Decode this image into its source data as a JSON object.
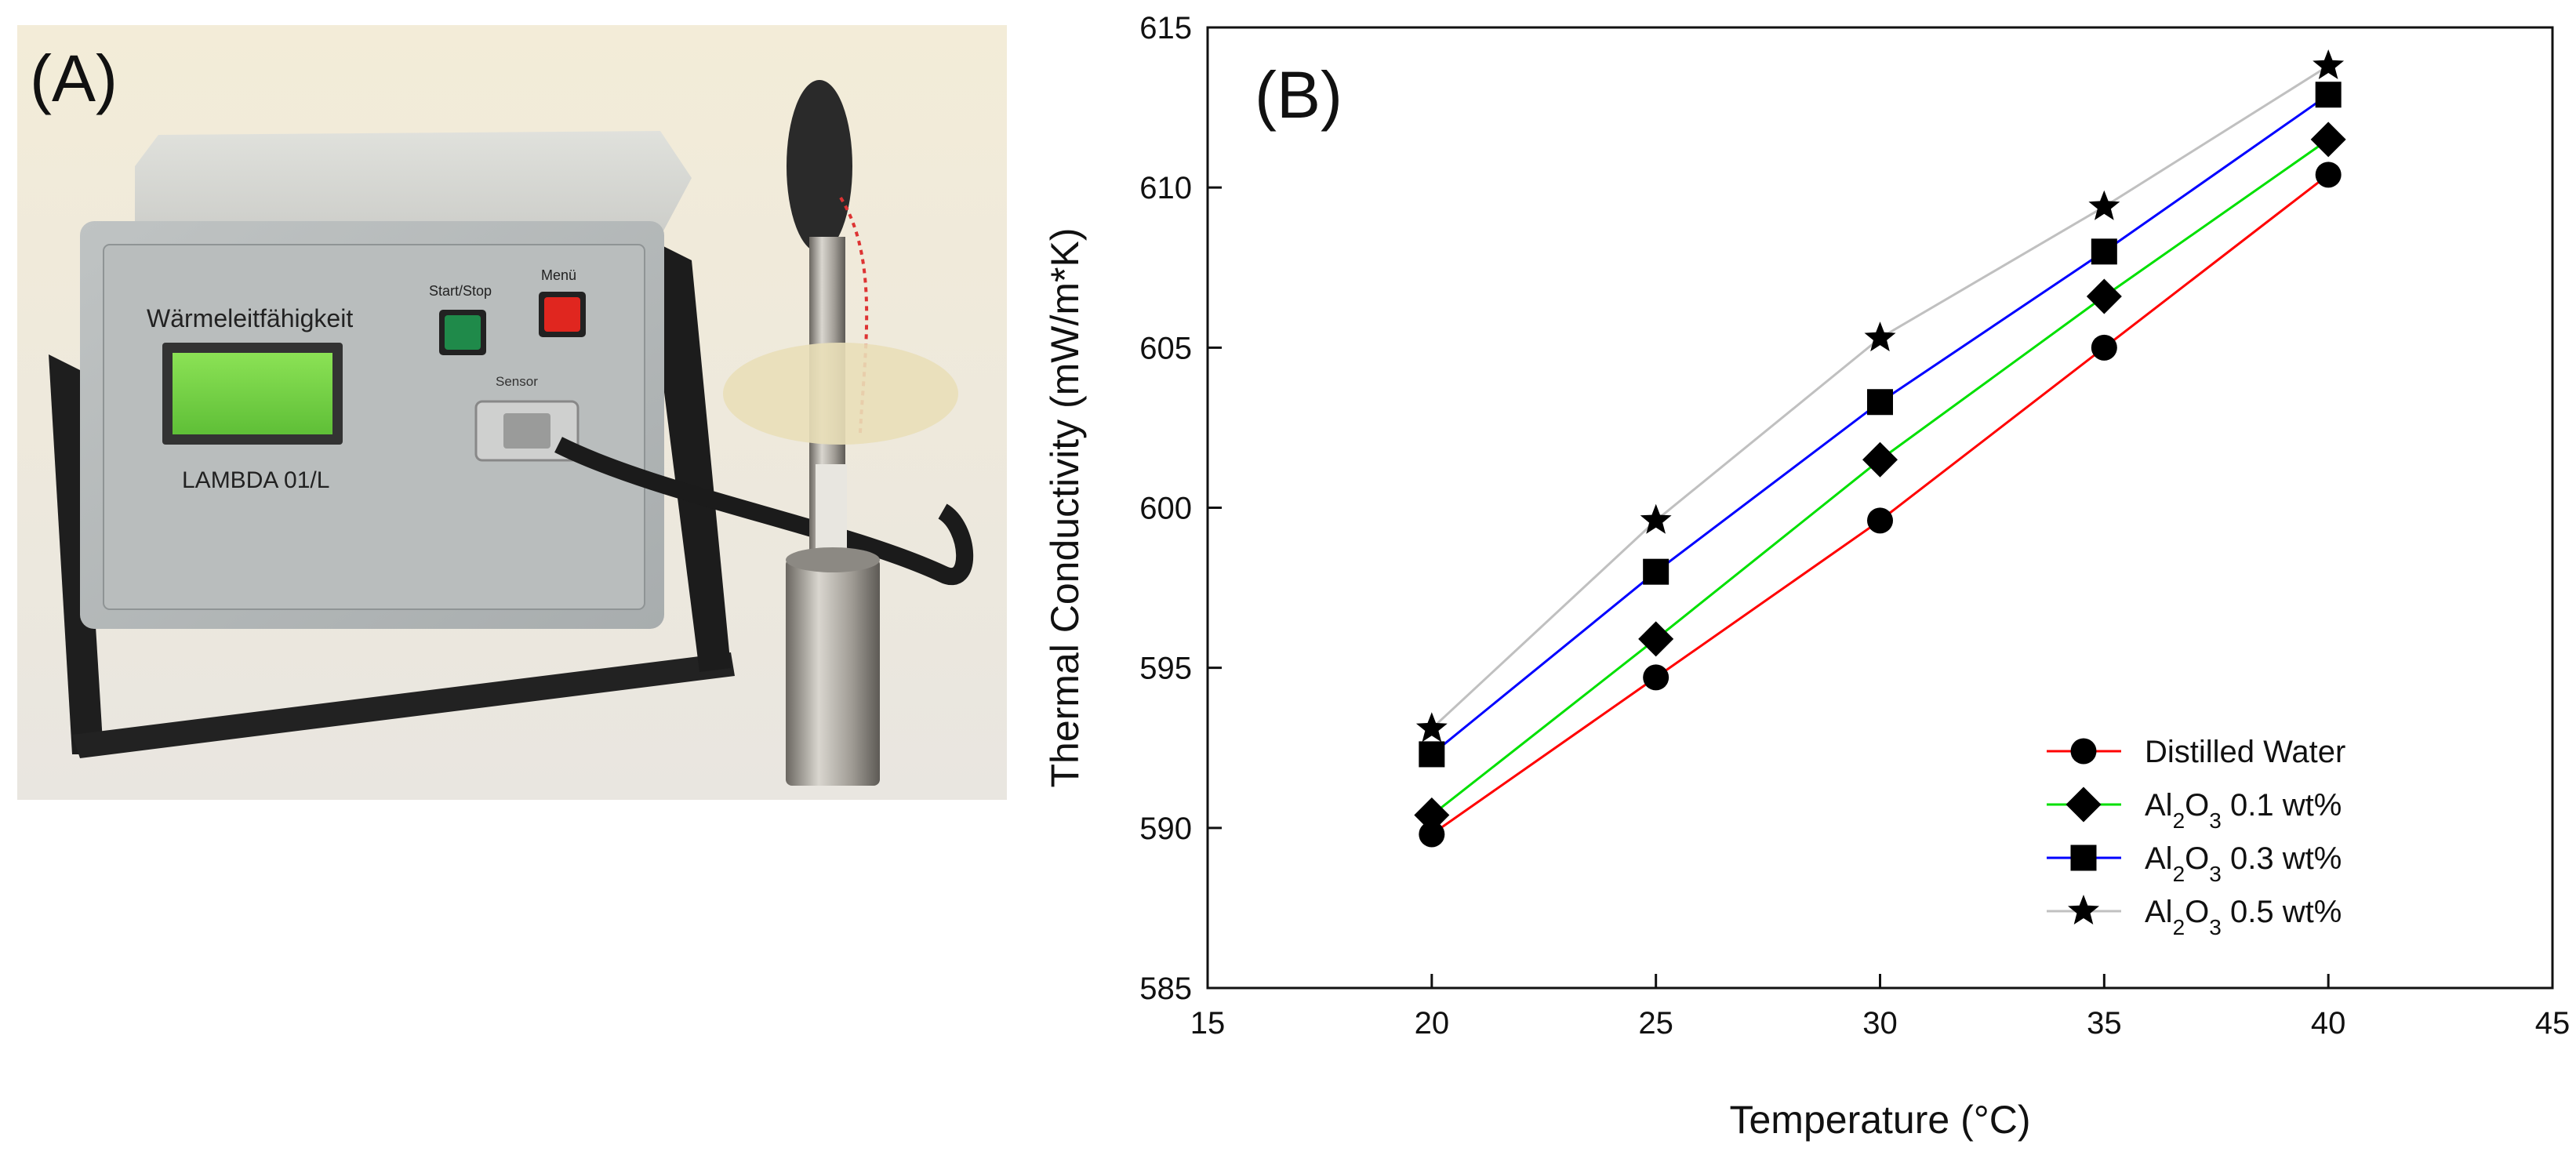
{
  "panel_a": {
    "label": "(A)",
    "device": {
      "display_title": "Wärmeleitfähigkeit",
      "model": "LAMBDA 01/L",
      "start_stop_label": "Start/Stop",
      "menu_label": "Menü",
      "sensor_label": "Sensor"
    }
  },
  "colors": {
    "distilled_water": "#ff0000",
    "al2o3_01": "#00e000",
    "al2o3_03": "#0000ff",
    "al2o3_05": "#c0c0c0",
    "button_green": "#1f8a4a",
    "button_red": "#e0261f",
    "lcd": "#7fd64a"
  },
  "chart_data": {
    "type": "line",
    "panel_label": "(B)",
    "xlabel": "Temperature (°C)",
    "ylabel": "Thermal Conductivity (mW/m*K)",
    "xlim": [
      15,
      45
    ],
    "ylim": [
      585,
      615
    ],
    "xticks": [
      "15",
      "20",
      "25",
      "30",
      "35",
      "40",
      "45"
    ],
    "yticks": [
      "585",
      "590",
      "595",
      "600",
      "605",
      "610",
      "615"
    ],
    "x": [
      20,
      25,
      30,
      35,
      40
    ],
    "series": [
      {
        "name": "Distilled Water",
        "marker": "circle",
        "color": "#ff0000",
        "values": [
          589.8,
          594.7,
          599.6,
          605.0,
          610.4
        ]
      },
      {
        "name": "Al2O3 0.1 wt%",
        "marker": "diamond",
        "color": "#00e000",
        "values": [
          590.4,
          595.9,
          601.5,
          606.6,
          611.5
        ]
      },
      {
        "name": "Al2O3 0.3 wt%",
        "marker": "square",
        "color": "#0000ff",
        "values": [
          592.3,
          598.0,
          603.3,
          608.0,
          612.9
        ]
      },
      {
        "name": "Al2O3 0.5 wt%",
        "marker": "star",
        "color": "#c0c0c0",
        "values": [
          593.1,
          599.6,
          605.3,
          609.4,
          613.8
        ]
      }
    ],
    "legend": "bottom-right",
    "grid": false
  }
}
